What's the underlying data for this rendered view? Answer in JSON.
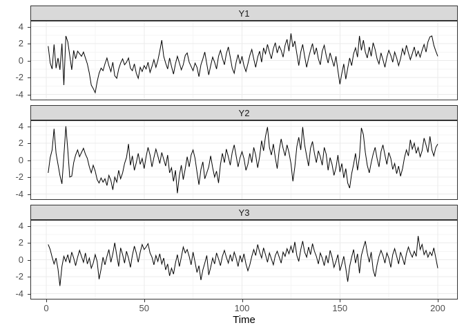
{
  "chart_data": {
    "type": "line",
    "title": "",
    "xlabel": "Time",
    "ylabel": "",
    "facet_layout": "rows",
    "x_range": [
      1,
      200
    ],
    "ylim": [
      -4.6,
      4.6
    ],
    "x_ticks": [
      0,
      50,
      100,
      150,
      200
    ],
    "x_minor_ticks": [
      25,
      75,
      125,
      175
    ],
    "y_ticks": [
      4,
      2,
      0,
      -2,
      -4
    ],
    "y_minor_ticks": [
      3,
      1,
      -1,
      -3
    ],
    "grid": true,
    "legend": "none",
    "style": {
      "line_color": "#000000",
      "strip_fill": "#D9D9D9",
      "panel_border": "#333333",
      "grid_major": "#EBEBEB",
      "grid_minor": "#F5F5F5",
      "tick_label_color": "#4D4D4D",
      "axis_title_color": "#000000"
    },
    "series": [
      {
        "name": "Y1",
        "values": [
          1.7,
          -0.3,
          -1.0,
          1.9,
          -0.9,
          0.3,
          -1.1,
          2.0,
          -2.9,
          2.9,
          2.2,
          0.6,
          -1.1,
          1.2,
          0.2,
          1.1,
          0.8,
          0.5,
          1.0,
          0.3,
          -0.4,
          -1.5,
          -2.9,
          -3.3,
          -3.8,
          -2.5,
          -1.5,
          -0.9,
          -1.2,
          -0.4,
          0.3,
          -0.6,
          -1.3,
          -0.2,
          -1.8,
          -2.1,
          -1.0,
          -0.3,
          0.2,
          -0.5,
          -0.2,
          0.3,
          -0.9,
          -1.2,
          -0.4,
          -1.5,
          -2.1,
          -0.8,
          -1.3,
          -0.6,
          -1.0,
          -0.2,
          -1.4,
          -0.7,
          0.1,
          -0.8,
          0.0,
          1.1,
          2.4,
          0.5,
          -0.3,
          -1.0,
          0.3,
          -0.7,
          -1.6,
          -0.4,
          0.5,
          -0.3,
          -1.1,
          -0.5,
          0.6,
          0.9,
          -0.2,
          -0.7,
          -1.2,
          -0.3,
          -0.8,
          -1.9,
          -0.5,
          0.2,
          1.0,
          -0.4,
          -1.7,
          -0.6,
          0.4,
          -0.2,
          -1.0,
          0.5,
          1.2,
          0.3,
          -0.5,
          0.8,
          1.6,
          0.4,
          -0.9,
          -1.5,
          -0.2,
          0.7,
          -0.4,
          0.5,
          -0.6,
          -1.3,
          -0.4,
          0.6,
          1.3,
          0.2,
          -0.8,
          0.4,
          1.1,
          -0.2,
          1.5,
          0.8,
          1.9,
          1.0,
          0.2,
          1.4,
          2.1,
          0.9,
          1.7,
          1.2,
          0.4,
          1.8,
          2.5,
          1.1,
          3.2,
          1.6,
          2.3,
          0.8,
          -0.6,
          1.0,
          1.9,
          0.5,
          -0.8,
          0.3,
          1.2,
          2.0,
          0.7,
          1.5,
          0.2,
          -0.5,
          1.1,
          1.8,
          0.6,
          -0.3,
          0.9,
          0.1,
          -0.7,
          0.5,
          -1.2,
          -2.8,
          -1.5,
          -0.4,
          -2.2,
          -0.9,
          0.3,
          -0.6,
          0.8,
          1.5,
          0.4,
          2.9,
          1.2,
          2.4,
          1.0,
          0.3,
          1.6,
          0.5,
          2.1,
          1.3,
          0.2,
          -0.4,
          0.9,
          0.1,
          -0.8,
          0.4,
          1.2,
          0.6,
          -0.2,
          1.0,
          0.3,
          -0.6,
          0.2,
          1.4,
          0.7,
          1.8,
          0.9,
          0.1,
          0.8,
          1.6,
          0.5,
          1.1,
          0.4,
          1.2,
          1.9,
          1.0,
          2.2,
          2.8,
          2.9,
          1.8,
          1.1,
          0.5
        ]
      },
      {
        "name": "Y2",
        "values": [
          -1.5,
          0.3,
          1.2,
          3.7,
          0.8,
          -0.5,
          -1.8,
          -2.8,
          0.5,
          4.0,
          1.2,
          -2.0,
          -1.9,
          -0.3,
          0.6,
          1.2,
          0.4,
          0.9,
          1.4,
          0.7,
          0.2,
          -0.8,
          -1.5,
          -0.6,
          -1.3,
          -2.3,
          -2.7,
          -2.1,
          -2.6,
          -2.2,
          -3.0,
          -1.8,
          -2.4,
          -3.5,
          -2.0,
          -2.6,
          -1.2,
          -2.2,
          -1.5,
          -0.4,
          0.3,
          1.9,
          -0.6,
          0.5,
          -1.2,
          -0.3,
          0.8,
          -0.5,
          0.2,
          -1.0,
          0.4,
          1.5,
          0.6,
          -0.8,
          0.3,
          1.3,
          0.5,
          -0.4,
          0.9,
          0.1,
          -0.7,
          0.6,
          -1.5,
          -0.9,
          -2.5,
          -1.2,
          -3.9,
          -1.8,
          -0.6,
          -2.3,
          -1.0,
          0.4,
          -0.8,
          0.6,
          1.2,
          0.2,
          -1.4,
          -2.9,
          -1.1,
          -0.2,
          -2.2,
          -1.5,
          -0.8,
          0.5,
          -0.9,
          -2.0,
          -1.3,
          -2.7,
          -0.5,
          0.8,
          -0.3,
          1.3,
          0.4,
          -0.6,
          0.9,
          1.8,
          0.5,
          -0.8,
          0.3,
          1.0,
          0.2,
          -1.2,
          -0.5,
          0.8,
          -0.3,
          1.5,
          0.6,
          -0.9,
          0.4,
          2.3,
          1.1,
          2.8,
          3.9,
          1.5,
          0.6,
          1.9,
          0.3,
          -1.0,
          1.2,
          2.5,
          1.4,
          0.5,
          1.8,
          0.9,
          -0.4,
          -2.5,
          -0.8,
          1.6,
          2.7,
          1.2,
          3.9,
          1.8,
          0.5,
          -0.7,
          1.4,
          2.2,
          0.8,
          -0.3,
          1.1,
          0.4,
          -0.6,
          1.5,
          0.7,
          -1.2,
          0.3,
          -0.5,
          -1.8,
          -0.9,
          0.6,
          -1.4,
          -0.4,
          -2.1,
          -1.0,
          -2.7,
          -3.3,
          -1.6,
          -0.5,
          0.8,
          -1.2,
          0.4,
          3.8,
          3.0,
          0.9,
          -0.6,
          -1.5,
          -0.3,
          0.7,
          1.5,
          0.2,
          -0.8,
          1.0,
          1.8,
          0.6,
          -0.5,
          0.9,
          0.2,
          -1.1,
          -0.4,
          -1.6,
          -0.7,
          -1.9,
          -1.0,
          0.3,
          1.2,
          0.5,
          2.4,
          1.3,
          2.0,
          0.8,
          1.5,
          0.4,
          1.1,
          2.6,
          1.8,
          0.9,
          2.8,
          1.2,
          0.5,
          1.5,
          1.9
        ]
      },
      {
        "name": "Y3",
        "values": [
          1.8,
          1.2,
          0.3,
          -0.5,
          0.2,
          -1.1,
          -3.1,
          -0.8,
          0.4,
          -0.2,
          0.6,
          -0.4,
          0.9,
          0.2,
          -0.7,
          0.3,
          1.1,
          0.4,
          -0.3,
          0.8,
          -0.5,
          0.2,
          -1.0,
          -0.4,
          0.6,
          -0.2,
          -2.3,
          -1.1,
          0.3,
          -0.6,
          0.4,
          1.2,
          -0.3,
          0.7,
          2.0,
          0.5,
          -0.8,
          1.4,
          0.6,
          -0.4,
          1.0,
          0.2,
          -0.9,
          0.5,
          1.6,
          0.8,
          -0.3,
          0.9,
          1.8,
          1.2,
          1.5,
          1.9,
          0.8,
          0.3,
          -0.6,
          0.5,
          -0.2,
          0.7,
          -0.5,
          0.2,
          -1.2,
          -0.5,
          -1.9,
          -1.0,
          -1.7,
          -0.4,
          0.6,
          -0.8,
          0.3,
          1.5,
          0.8,
          1.2,
          0.4,
          -0.6,
          0.9,
          -0.3,
          -1.5,
          -0.7,
          -2.4,
          -1.2,
          -0.4,
          0.5,
          -1.8,
          -0.9,
          0.2,
          -0.5,
          0.8,
          0.1,
          -0.7,
          0.4,
          1.1,
          0.3,
          -0.4,
          0.6,
          -0.2,
          0.9,
          0.2,
          -0.8,
          0.5,
          -0.3,
          0.7,
          -0.5,
          -1.3,
          -0.6,
          0.4,
          1.2,
          0.5,
          1.8,
          0.9,
          0.2,
          1.4,
          0.6,
          -0.3,
          0.8,
          0.1,
          -0.6,
          0.5,
          1.0,
          0.3,
          -0.4,
          0.9,
          0.4,
          1.3,
          0.7,
          1.6,
          0.8,
          2.1,
          0.5,
          -0.2,
          1.2,
          2.2,
          0.9,
          0.3,
          1.5,
          0.6,
          1.9,
          1.0,
          0.4,
          -0.5,
          0.8,
          0.2,
          -0.7,
          0.5,
          -0.4,
          1.1,
          0.3,
          -0.9,
          -0.2,
          0.6,
          -1.3,
          -0.5,
          0.4,
          -1.0,
          -2.6,
          -0.8,
          0.3,
          1.2,
          -0.4,
          0.7,
          -1.6,
          0.5,
          1.4,
          2.2,
          0.8,
          -0.3,
          0.9,
          -1.2,
          -2.0,
          -0.6,
          0.4,
          1.1,
          0.5,
          -0.4,
          0.8,
          0.2,
          -0.9,
          0.6,
          1.3,
          0.4,
          -0.5,
          0.9,
          0.2,
          -0.6,
          0.7,
          1.5,
          0.8,
          0.3,
          1.0,
          0.4,
          2.8,
          1.2,
          1.8,
          0.6,
          1.1,
          0.3,
          0.9,
          0.5,
          1.4,
          0.2,
          -1.0
        ]
      }
    ]
  }
}
